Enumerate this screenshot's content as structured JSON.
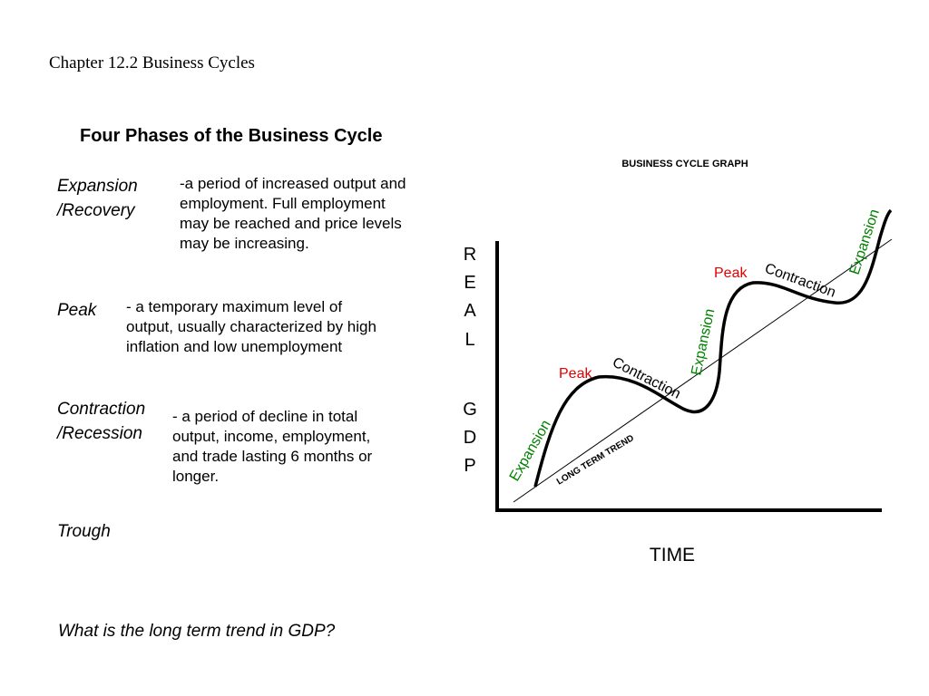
{
  "slide": {
    "chapter_title": "Chapter 12.2 Business Cycles",
    "section_heading": "Four Phases of the Business Cycle",
    "question": "What is the long term trend in GDP?"
  },
  "phases": [
    {
      "term_line1": "Expansion",
      "term_line2": "/Recovery",
      "description": [
        "-a period of increased output and",
        "employment.  Full employment",
        "may be reached and price levels",
        "may be increasing."
      ]
    },
    {
      "term_line1": "Peak",
      "term_line2": "",
      "description": [
        "- a temporary maximum level of",
        "output, usually characterized by high",
        "inflation and low unemployment"
      ]
    },
    {
      "term_line1": "Contraction",
      "term_line2": "/Recession",
      "description": [
        "- a period of decline in total",
        "output, income, employment,",
        "and trade lasting 6 months or",
        "longer."
      ]
    },
    {
      "term_line1": "Trough",
      "term_line2": "",
      "description": []
    }
  ],
  "graph": {
    "title": "BUSINESS CYCLE GRAPH",
    "y_axis_letters": [
      "R",
      "E",
      "A",
      "L",
      "",
      "G",
      "D",
      "P"
    ],
    "x_axis_label": "TIME",
    "trend_label": "LONG TERM TREND",
    "labels": {
      "expansion": "Expansion",
      "peak": "Peak",
      "contraction": "Contraction"
    },
    "colors": {
      "expansion": "#008000",
      "peak": "#e00000",
      "contraction": "#000000",
      "curve": "#000000"
    }
  }
}
